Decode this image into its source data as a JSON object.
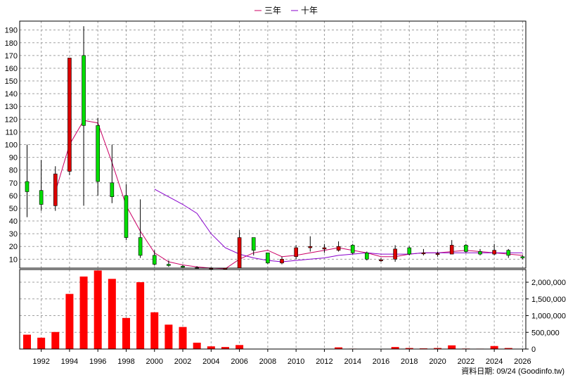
{
  "chart_data": {
    "type": "candlestick+bar",
    "legend": [
      {
        "label": "三年",
        "color": "#cc0066"
      },
      {
        "label": "十年",
        "color": "#8800cc"
      }
    ],
    "legend_position": "top-center",
    "source_note": "資料日期: 09/24  (Goodinfo.tw)",
    "x_ticks": [
      "1992",
      "1994",
      "1996",
      "1998",
      "2000",
      "2002",
      "2004",
      "2006",
      "2008",
      "2010",
      "2012",
      "2014",
      "2016",
      "2018",
      "2020",
      "2022",
      "2024",
      "2026"
    ],
    "price_axis": {
      "ticks": [
        10,
        20,
        30,
        40,
        50,
        60,
        70,
        80,
        90,
        100,
        110,
        120,
        130,
        140,
        150,
        160,
        170,
        180,
        190
      ],
      "ylim": [
        3,
        197
      ]
    },
    "volume_axis": {
      "ticks": [
        0,
        500000,
        1000000,
        1500000,
        2000000
      ],
      "tick_labels": [
        "0",
        "500,000",
        "1,000,000",
        "1,500,000",
        "2,000,000"
      ],
      "ylim": [
        0,
        2380000
      ]
    },
    "grid": true,
    "candles": [
      {
        "year": 1991,
        "open": 71,
        "close": 63,
        "high": 100,
        "low": 43
      },
      {
        "year": 1992,
        "open": 64,
        "close": 53,
        "high": 88,
        "low": 48
      },
      {
        "year": 1993,
        "open": 52,
        "close": 77,
        "high": 83,
        "low": 48
      },
      {
        "year": 1994,
        "open": 79,
        "close": 168,
        "high": 168,
        "low": 76
      },
      {
        "year": 1995,
        "open": 170,
        "close": 115,
        "high": 193,
        "low": 52
      },
      {
        "year": 1996,
        "open": 115,
        "close": 71,
        "high": 121,
        "low": 60
      },
      {
        "year": 1997,
        "open": 70,
        "close": 59,
        "high": 100,
        "low": 54
      },
      {
        "year": 1998,
        "open": 60,
        "close": 27,
        "high": 69,
        "low": 25
      },
      {
        "year": 1999,
        "open": 27,
        "close": 13,
        "high": 57,
        "low": 11
      },
      {
        "year": 2000,
        "open": 13,
        "close": 6,
        "high": 17,
        "low": 5
      },
      {
        "year": 2001,
        "open": 6,
        "close": 5,
        "high": 9,
        "low": 4
      },
      {
        "year": 2002,
        "open": 4.5,
        "close": 4,
        "high": 5.5,
        "low": 3.5
      },
      {
        "year": 2003,
        "open": 3.5,
        "close": 3,
        "high": 4.5,
        "low": 2.8
      },
      {
        "year": 2004,
        "open": 3,
        "close": 3.2,
        "high": 3.5,
        "low": 2.8
      },
      {
        "year": 2005,
        "open": 3,
        "close": 3,
        "high": 3.2,
        "low": 2.8
      },
      {
        "year": 2006,
        "open": 3,
        "close": 27,
        "high": 33,
        "low": 3
      },
      {
        "year": 2007,
        "open": 27,
        "close": 17,
        "high": 27,
        "low": 13
      },
      {
        "year": 2008,
        "open": 15,
        "close": 7,
        "high": 15,
        "low": 6
      },
      {
        "year": 2009,
        "open": 7,
        "close": 10,
        "high": 12,
        "low": 6
      },
      {
        "year": 2010,
        "open": 12,
        "close": 19,
        "high": 21,
        "low": 10
      },
      {
        "year": 2011,
        "open": 19,
        "close": 20,
        "high": 28,
        "low": 16
      },
      {
        "year": 2012,
        "open": 18,
        "close": 19,
        "high": 22,
        "low": 15
      },
      {
        "year": 2013,
        "open": 17,
        "close": 20,
        "high": 24,
        "low": 16
      },
      {
        "year": 2014,
        "open": 21,
        "close": 15,
        "high": 22,
        "low": 14
      },
      {
        "year": 2015,
        "open": 15,
        "close": 10,
        "high": 16,
        "low": 9
      },
      {
        "year": 2016,
        "open": 9,
        "close": 9.5,
        "high": 11,
        "low": 8
      },
      {
        "year": 2017,
        "open": 10,
        "close": 18,
        "high": 21,
        "low": 8
      },
      {
        "year": 2018,
        "open": 19,
        "close": 14,
        "high": 20,
        "low": 13
      },
      {
        "year": 2019,
        "open": 15,
        "close": 15,
        "high": 18,
        "low": 13
      },
      {
        "year": 2020,
        "open": 14,
        "close": 14.5,
        "high": 16,
        "low": 12
      },
      {
        "year": 2021,
        "open": 14,
        "close": 21,
        "high": 25,
        "low": 14
      },
      {
        "year": 2022,
        "open": 21,
        "close": 16,
        "high": 22,
        "low": 15
      },
      {
        "year": 2023,
        "open": 16,
        "close": 14,
        "high": 18,
        "low": 13
      },
      {
        "year": 2024,
        "open": 14,
        "close": 17,
        "high": 22,
        "low": 13
      },
      {
        "year": 2025,
        "open": 17,
        "close": 13,
        "high": 18,
        "low": 11
      },
      {
        "year": 2026,
        "open": 12,
        "close": 11,
        "high": 13,
        "low": 10
      }
    ],
    "volume": [
      {
        "year": 1991,
        "value": 430000
      },
      {
        "year": 1992,
        "value": 340000
      },
      {
        "year": 1993,
        "value": 510000
      },
      {
        "year": 1994,
        "value": 1650000
      },
      {
        "year": 1995,
        "value": 2170000
      },
      {
        "year": 1996,
        "value": 2350000
      },
      {
        "year": 1997,
        "value": 2100000
      },
      {
        "year": 1998,
        "value": 930000
      },
      {
        "year": 1999,
        "value": 2000000
      },
      {
        "year": 2000,
        "value": 1100000
      },
      {
        "year": 2001,
        "value": 730000
      },
      {
        "year": 2002,
        "value": 660000
      },
      {
        "year": 2003,
        "value": 190000
      },
      {
        "year": 2004,
        "value": 80000
      },
      {
        "year": 2005,
        "value": 60000
      },
      {
        "year": 2006,
        "value": 120000
      },
      {
        "year": 2007,
        "value": 10000
      },
      {
        "year": 2008,
        "value": 8000
      },
      {
        "year": 2009,
        "value": 8000
      },
      {
        "year": 2010,
        "value": 8000
      },
      {
        "year": 2011,
        "value": 5000
      },
      {
        "year": 2012,
        "value": 8000
      },
      {
        "year": 2013,
        "value": 50000
      },
      {
        "year": 2014,
        "value": 12000
      },
      {
        "year": 2015,
        "value": 10000
      },
      {
        "year": 2016,
        "value": 8000
      },
      {
        "year": 2017,
        "value": 60000
      },
      {
        "year": 2018,
        "value": 30000
      },
      {
        "year": 2019,
        "value": 20000
      },
      {
        "year": 2020,
        "value": 30000
      },
      {
        "year": 2021,
        "value": 110000
      },
      {
        "year": 2022,
        "value": 15000
      },
      {
        "year": 2023,
        "value": 12000
      },
      {
        "year": 2024,
        "value": 90000
      },
      {
        "year": 2025,
        "value": 30000
      },
      {
        "year": 2026,
        "value": 10000
      }
    ],
    "series": [
      {
        "name": "三年",
        "x": [
          1993,
          1994,
          1995,
          1996,
          1997,
          1998,
          1999,
          2000,
          2001,
          2002,
          2003,
          2004,
          2005,
          2006,
          2007,
          2008,
          2009,
          2010,
          2011,
          2012,
          2013,
          2014,
          2015,
          2016,
          2017,
          2018,
          2019,
          2020,
          2021,
          2022,
          2023,
          2024,
          2025,
          2026
        ],
        "values": [
          63,
          100,
          119,
          117,
          86,
          52,
          32,
          15,
          8,
          5.5,
          4,
          3,
          2.5,
          10,
          15,
          17,
          12,
          13,
          15,
          17,
          19,
          17,
          15,
          12,
          12,
          14,
          15,
          15,
          16,
          17,
          16,
          15,
          14,
          13
        ]
      },
      {
        "name": "十年",
        "x": [
          2000,
          2001,
          2002,
          2003,
          2004,
          2005,
          2006,
          2007,
          2008,
          2009,
          2010,
          2011,
          2012,
          2013,
          2014,
          2015,
          2016,
          2017,
          2018,
          2019,
          2020,
          2021,
          2022,
          2023,
          2024,
          2025,
          2026
        ],
        "values": [
          65,
          59,
          53,
          46,
          30,
          19,
          14,
          11,
          9,
          8,
          9,
          10,
          11,
          13,
          14,
          15,
          14,
          14,
          14,
          15,
          15,
          15,
          15,
          15,
          15,
          15,
          15
        ]
      }
    ]
  }
}
